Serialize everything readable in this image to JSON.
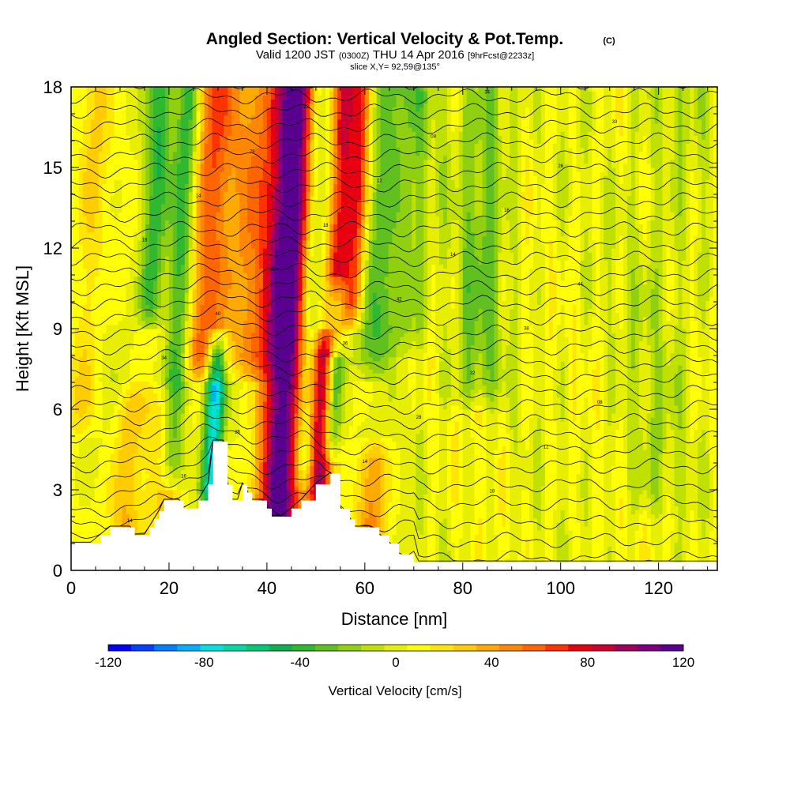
{
  "chart_data": {
    "type": "heatmap",
    "title": "Angled Section: Vertical Velocity & Pot.Temp.",
    "title_unit": "(C)",
    "subtitle": {
      "valid": "Valid 1200 JST",
      "zulu": "(0300Z)",
      "date": "THU 14 Apr 2016",
      "forecast": "[9hrFcst@2233z]"
    },
    "slice_label": "slice X,Y= 92,59@135°",
    "xlabel": "Distance [nm]",
    "ylabel": "Height [Kft MSL]",
    "xlim": [
      0,
      132
    ],
    "ylim": [
      0,
      18
    ],
    "x_ticks": [
      "0",
      "20",
      "40",
      "60",
      "80",
      "100",
      "120"
    ],
    "y_ticks": [
      "0",
      "3",
      "6",
      "9",
      "12",
      "15",
      "18"
    ],
    "colorbar": {
      "title": "Vertical Velocity [cm/s]",
      "tick_labels": [
        "-120",
        "-80",
        "-40",
        "0",
        "40",
        "80",
        "120"
      ],
      "range": [
        -120,
        120
      ],
      "colors": [
        "#0000ff",
        "#0040ff",
        "#0080ff",
        "#00b0ff",
        "#00e0e0",
        "#00d8a8",
        "#00c878",
        "#10b050",
        "#30b830",
        "#60c020",
        "#90d010",
        "#c0e000",
        "#e8ee00",
        "#ffff00",
        "#ffe600",
        "#ffcc00",
        "#ffaa00",
        "#ff8800",
        "#ff6600",
        "#ff3300",
        "#e60010",
        "#cc0030",
        "#a00060",
        "#800080",
        "#5a0090"
      ]
    },
    "terrain_kft": [
      [
        0,
        1.0
      ],
      [
        4,
        1.0
      ],
      [
        6,
        1.3
      ],
      [
        8,
        1.6
      ],
      [
        12,
        1.6
      ],
      [
        13,
        1.3
      ],
      [
        15,
        1.3
      ],
      [
        16,
        1.6
      ],
      [
        17,
        1.9
      ],
      [
        18,
        2.2
      ],
      [
        19,
        2.6
      ],
      [
        22,
        2.6
      ],
      [
        23,
        2.3
      ],
      [
        26,
        2.6
      ],
      [
        28,
        3.2
      ],
      [
        29,
        4.8
      ],
      [
        31,
        4.8
      ],
      [
        32,
        3.2
      ],
      [
        33,
        2.6
      ],
      [
        34,
        2.6
      ],
      [
        35,
        3.2
      ],
      [
        36,
        2.9
      ],
      [
        37,
        2.6
      ],
      [
        39,
        2.6
      ],
      [
        40,
        2.3
      ],
      [
        41,
        2.0
      ],
      [
        43,
        2.0
      ],
      [
        45,
        2.3
      ],
      [
        47,
        2.6
      ],
      [
        50,
        3.2
      ],
      [
        53,
        3.6
      ],
      [
        55,
        2.3
      ],
      [
        57,
        1.9
      ],
      [
        58,
        1.6
      ],
      [
        61,
        1.6
      ],
      [
        63,
        1.3
      ],
      [
        65,
        1.0
      ],
      [
        67,
        0.6
      ],
      [
        70,
        0.3
      ],
      [
        132,
        0.3
      ]
    ],
    "w_features": [
      {
        "x": 44,
        "w": 4.5,
        "amp": 120,
        "top": 18,
        "bottom": 0
      },
      {
        "x": 52,
        "w": 2.2,
        "amp": 95,
        "top": 8,
        "bottom": 3
      },
      {
        "x": 54,
        "w": 2.5,
        "amp": 75,
        "top": 18,
        "bottom": 9
      },
      {
        "x": 57.5,
        "w": 2.0,
        "amp": 60,
        "top": 18,
        "bottom": 10
      },
      {
        "x": 27,
        "w": 4.0,
        "amp": 55,
        "top": 18,
        "bottom": 8
      },
      {
        "x": 36,
        "w": 6.0,
        "amp": 40,
        "top": 18,
        "bottom": 8
      },
      {
        "x": 16,
        "w": 2.5,
        "amp": -45,
        "top": 18,
        "bottom": 10
      },
      {
        "x": 22,
        "w": 2.5,
        "amp": -50,
        "top": 18,
        "bottom": 4
      },
      {
        "x": 30,
        "w": 2.0,
        "amp": -85,
        "top": 8,
        "bottom": 3
      },
      {
        "x": 48.5,
        "w": 2.5,
        "amp": -40,
        "top": 18,
        "bottom": 4
      },
      {
        "x": 54,
        "w": 2.0,
        "amp": -55,
        "top": 10,
        "bottom": 5
      },
      {
        "x": 63,
        "w": 3.0,
        "amp": 40,
        "top": 4,
        "bottom": 1
      },
      {
        "x": 62,
        "w": 3.5,
        "amp": -30,
        "top": 18,
        "bottom": 8
      },
      {
        "x": 83,
        "w": 5.0,
        "amp": -28,
        "top": 18,
        "bottom": 7
      },
      {
        "x": 68,
        "w": 5.0,
        "amp": -22,
        "top": 18,
        "bottom": 9
      },
      {
        "x": 13,
        "w": 3.0,
        "amp": 30,
        "top": 6,
        "bottom": 1
      },
      {
        "x": 20,
        "w": 4.0,
        "amp": 25,
        "top": 6,
        "bottom": 2
      },
      {
        "x": 3,
        "w": 3.0,
        "amp": 20,
        "top": 18,
        "bottom": 6
      },
      {
        "x": 120,
        "w": 8.0,
        "amp": -12,
        "top": 18,
        "bottom": 3
      }
    ],
    "contour_labels": [
      "14",
      "18",
      "18",
      "16",
      "14",
      "12",
      "26",
      "28",
      "08",
      "30",
      "32",
      "34",
      "36",
      "38",
      "40",
      "42",
      "44",
      "46"
    ]
  }
}
